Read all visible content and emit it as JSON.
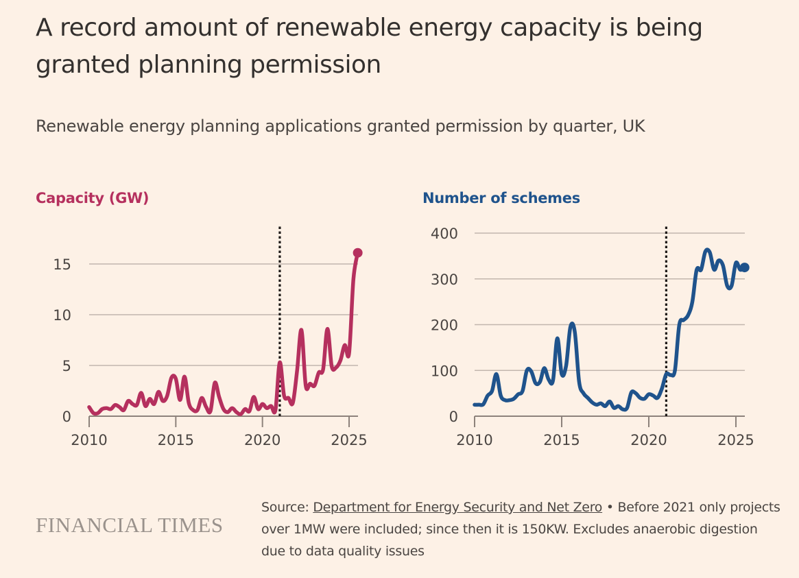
{
  "title": "A record amount of renewable energy capacity is being granted planning permission",
  "subtitle": "Renewable energy planning applications granted permission by quarter, UK",
  "colors": {
    "capacity": "#b5305e",
    "schemes": "#1f538c",
    "background": "#fdf1e6",
    "text": "#33302e"
  },
  "footer": {
    "brand": "FINANCIAL TIMES",
    "source_prefix": "Source: ",
    "source_link": "Department for Energy Security and Net Zero",
    "note": " • Before 2021 only projects over 1MW were included; since then it is 150KW. Excludes anaerobic digestion due to data quality issues"
  },
  "chart_data": [
    {
      "type": "line",
      "title": "Capacity (GW)",
      "xlabel": "",
      "ylabel": "Capacity (GW)",
      "xlim": [
        2010,
        2025.4
      ],
      "ylim": [
        0,
        17
      ],
      "yticks": [
        0,
        5,
        10,
        15
      ],
      "xticks": [
        2010,
        2015,
        2020,
        2025
      ],
      "annotation": {
        "type": "vertical-dotted-line",
        "x": 2021
      },
      "endpoint_marker": true,
      "x_start": 2010,
      "x_step": 0.25,
      "values": [
        0.9,
        0.3,
        0.3,
        0.7,
        0.8,
        0.7,
        1.1,
        0.9,
        0.6,
        1.5,
        1.2,
        1.1,
        2.3,
        1.0,
        1.7,
        1.2,
        2.4,
        1.5,
        2.0,
        3.8,
        3.7,
        1.6,
        3.9,
        1.3,
        0.6,
        0.6,
        1.8,
        0.9,
        0.5,
        3.3,
        1.9,
        0.7,
        0.4,
        0.8,
        0.4,
        0.2,
        0.7,
        0.5,
        1.9,
        0.7,
        1.2,
        0.8,
        1.0,
        0.6,
        5.3,
        2.0,
        1.8,
        1.3,
        4.5,
        8.5,
        3.0,
        3.2,
        3.0,
        4.3,
        4.6,
        8.6,
        4.9,
        4.8,
        5.5,
        7.0,
        6.2,
        13.5,
        16.1
      ]
    },
    {
      "type": "line",
      "title": "Number of schemes",
      "xlabel": "",
      "ylabel": "Number of schemes",
      "xlim": [
        2010,
        2025.4
      ],
      "ylim": [
        0,
        400
      ],
      "yticks": [
        0,
        100,
        200,
        300,
        400
      ],
      "xticks": [
        2010,
        2015,
        2020,
        2025
      ],
      "annotation": {
        "type": "vertical-dotted-line",
        "x": 2021
      },
      "endpoint_marker": true,
      "x_start": 2010,
      "x_step": 0.25,
      "values": [
        25,
        25,
        26,
        45,
        55,
        92,
        45,
        35,
        35,
        38,
        48,
        55,
        100,
        98,
        72,
        75,
        105,
        80,
        78,
        170,
        92,
        110,
        195,
        185,
        75,
        50,
        40,
        30,
        25,
        28,
        22,
        32,
        18,
        22,
        15,
        18,
        52,
        50,
        40,
        38,
        48,
        45,
        40,
        60,
        92,
        90,
        100,
        200,
        210,
        220,
        250,
        320,
        320,
        360,
        358,
        320,
        340,
        330,
        285,
        285,
        335,
        320,
        325
      ]
    }
  ]
}
